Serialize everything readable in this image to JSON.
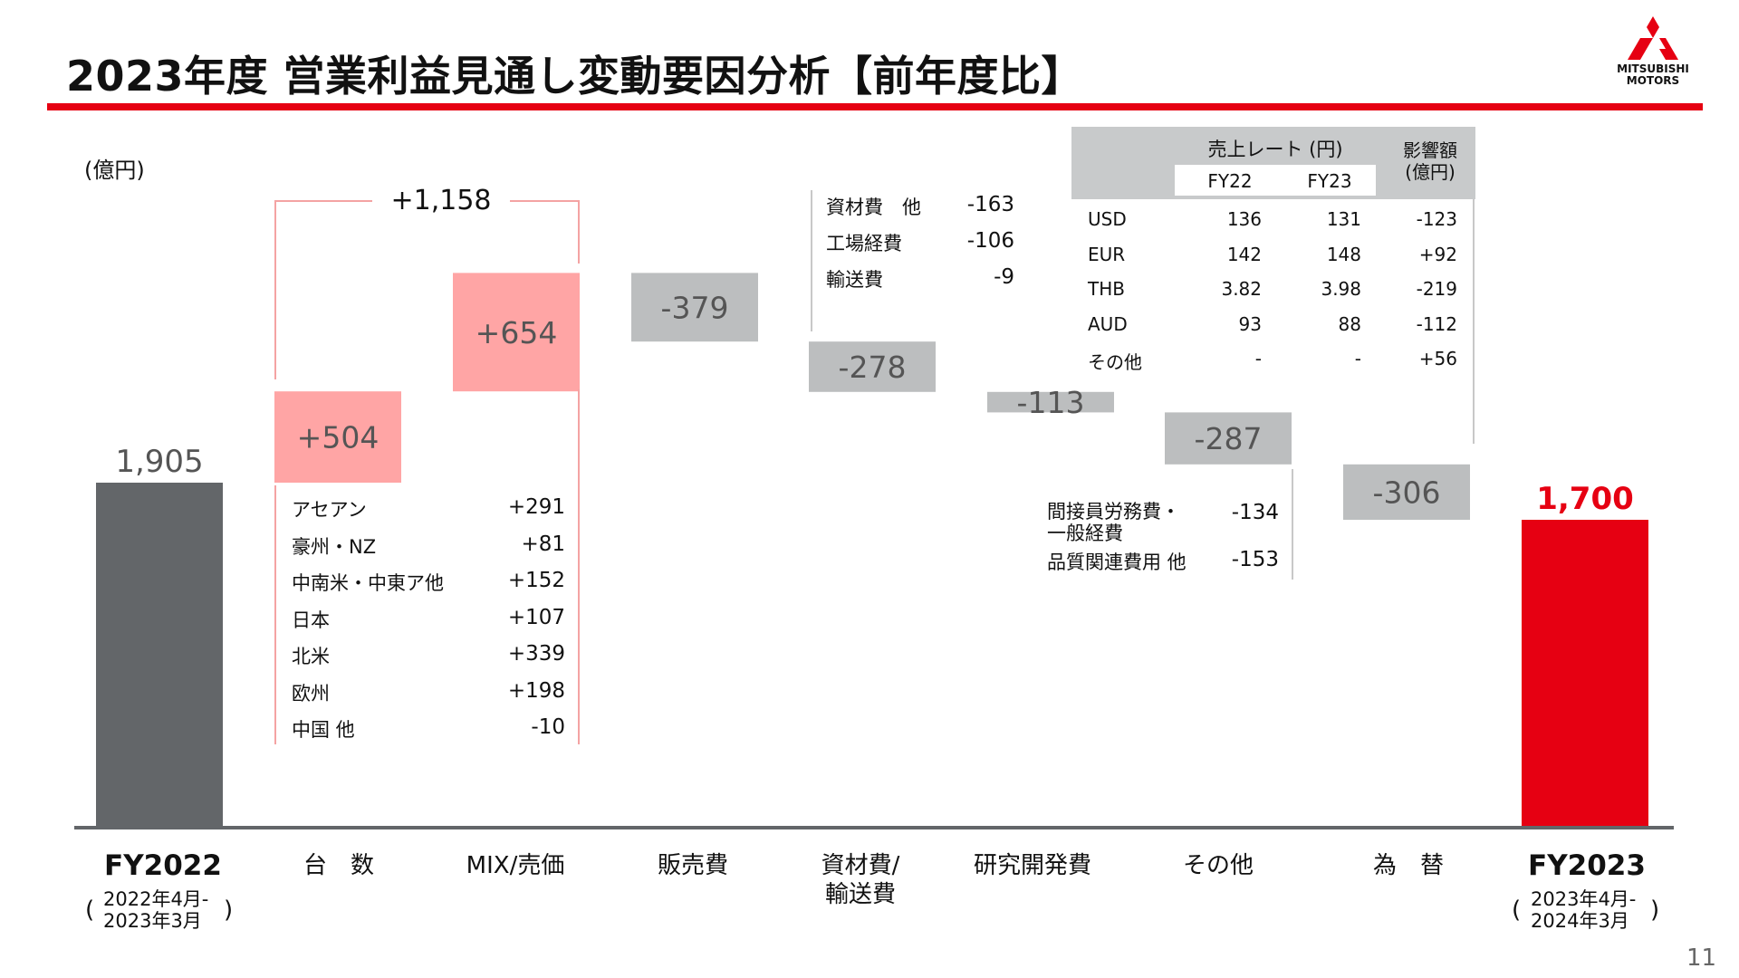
{
  "title": "2023年度 営業利益見通し変動要因分析【前年度比】",
  "unit_label": "(億円)",
  "page_number": "11",
  "logo": {
    "line1": "MITSUBISHI",
    "line2": "MOTORS",
    "color": "#e60012"
  },
  "colors": {
    "accent_red": "#e60012",
    "base_gray": "#636669",
    "positive_pink": "#ffa5a5",
    "negative_gray": "#bcbebf"
  },
  "chart_data": {
    "type": "bar",
    "subtype": "waterfall",
    "categories": [
      "FY2022",
      "台　数",
      "MIX/売価",
      "販売費",
      "資材費/輸送費",
      "研究開発費",
      "その他",
      "為　替",
      "FY2023"
    ],
    "values": [
      1905,
      504,
      654,
      -379,
      -278,
      -113,
      -287,
      -306,
      1700
    ],
    "value_labels": [
      "1,905",
      "+504",
      "+654",
      "-379",
      "-278",
      "-113",
      "-287",
      "-306",
      "1,700"
    ],
    "bar_kind": [
      "total",
      "delta",
      "delta",
      "delta",
      "delta",
      "delta",
      "delta",
      "delta",
      "total"
    ],
    "volume_mix_total_label": "+1,158"
  },
  "categories": {
    "fy22": {
      "label": "FY2022",
      "sub_line1": "2022年4月-",
      "sub_line2": "2023年3月",
      "paren_open": "(",
      "paren_close": ")"
    },
    "volume": "台　数",
    "mix": "MIX/売価",
    "selling": "販売費",
    "material_line1": "資材費/",
    "material_line2": "輸送費",
    "rd": "研究開発費",
    "other": "その他",
    "fx": "為　替",
    "fy23": {
      "label": "FY2023",
      "sub_line1": "2023年4月-",
      "sub_line2": "2024年3月",
      "paren_open": "(",
      "paren_close": ")"
    }
  },
  "volume_breakdown": [
    {
      "name": "アセアン",
      "value": "+291"
    },
    {
      "name": "豪州・NZ",
      "value": "+81"
    },
    {
      "name": "中南米・中東ア他",
      "value": "+152"
    },
    {
      "name": "日本",
      "value": "+107"
    },
    {
      "name": "北米",
      "value": "+339"
    },
    {
      "name": "欧州",
      "value": "+198"
    },
    {
      "name": "中国 他",
      "value": "-10"
    }
  ],
  "material_breakdown": [
    {
      "name": "資材費　他",
      "value": "-163"
    },
    {
      "name": "工場経費",
      "value": "-106"
    },
    {
      "name": "輸送費",
      "value": "-9"
    }
  ],
  "other_breakdown": {
    "row1_line1": "間接員労務費・",
    "row1_line2": "一般経費",
    "row1_value": "-134",
    "row2_name": "品質関連費用 他",
    "row2_value": "-153"
  },
  "fx_table": {
    "header_rate": "売上レート (円)",
    "header_fy22": "FY22",
    "header_fy23": "FY23",
    "header_impact_line1": "影響額",
    "header_impact_line2": "(億円)",
    "rows": [
      {
        "currency": "USD",
        "fy22": "136",
        "fy23": "131",
        "impact": "-123"
      },
      {
        "currency": "EUR",
        "fy22": "142",
        "fy23": "148",
        "impact": "+92"
      },
      {
        "currency": "THB",
        "fy22": "3.82",
        "fy23": "3.98",
        "impact": "-219"
      },
      {
        "currency": "AUD",
        "fy22": "93",
        "fy23": "88",
        "impact": "-112"
      },
      {
        "currency": "その他",
        "fy22": "-",
        "fy23": "-",
        "impact": "+56"
      }
    ]
  }
}
